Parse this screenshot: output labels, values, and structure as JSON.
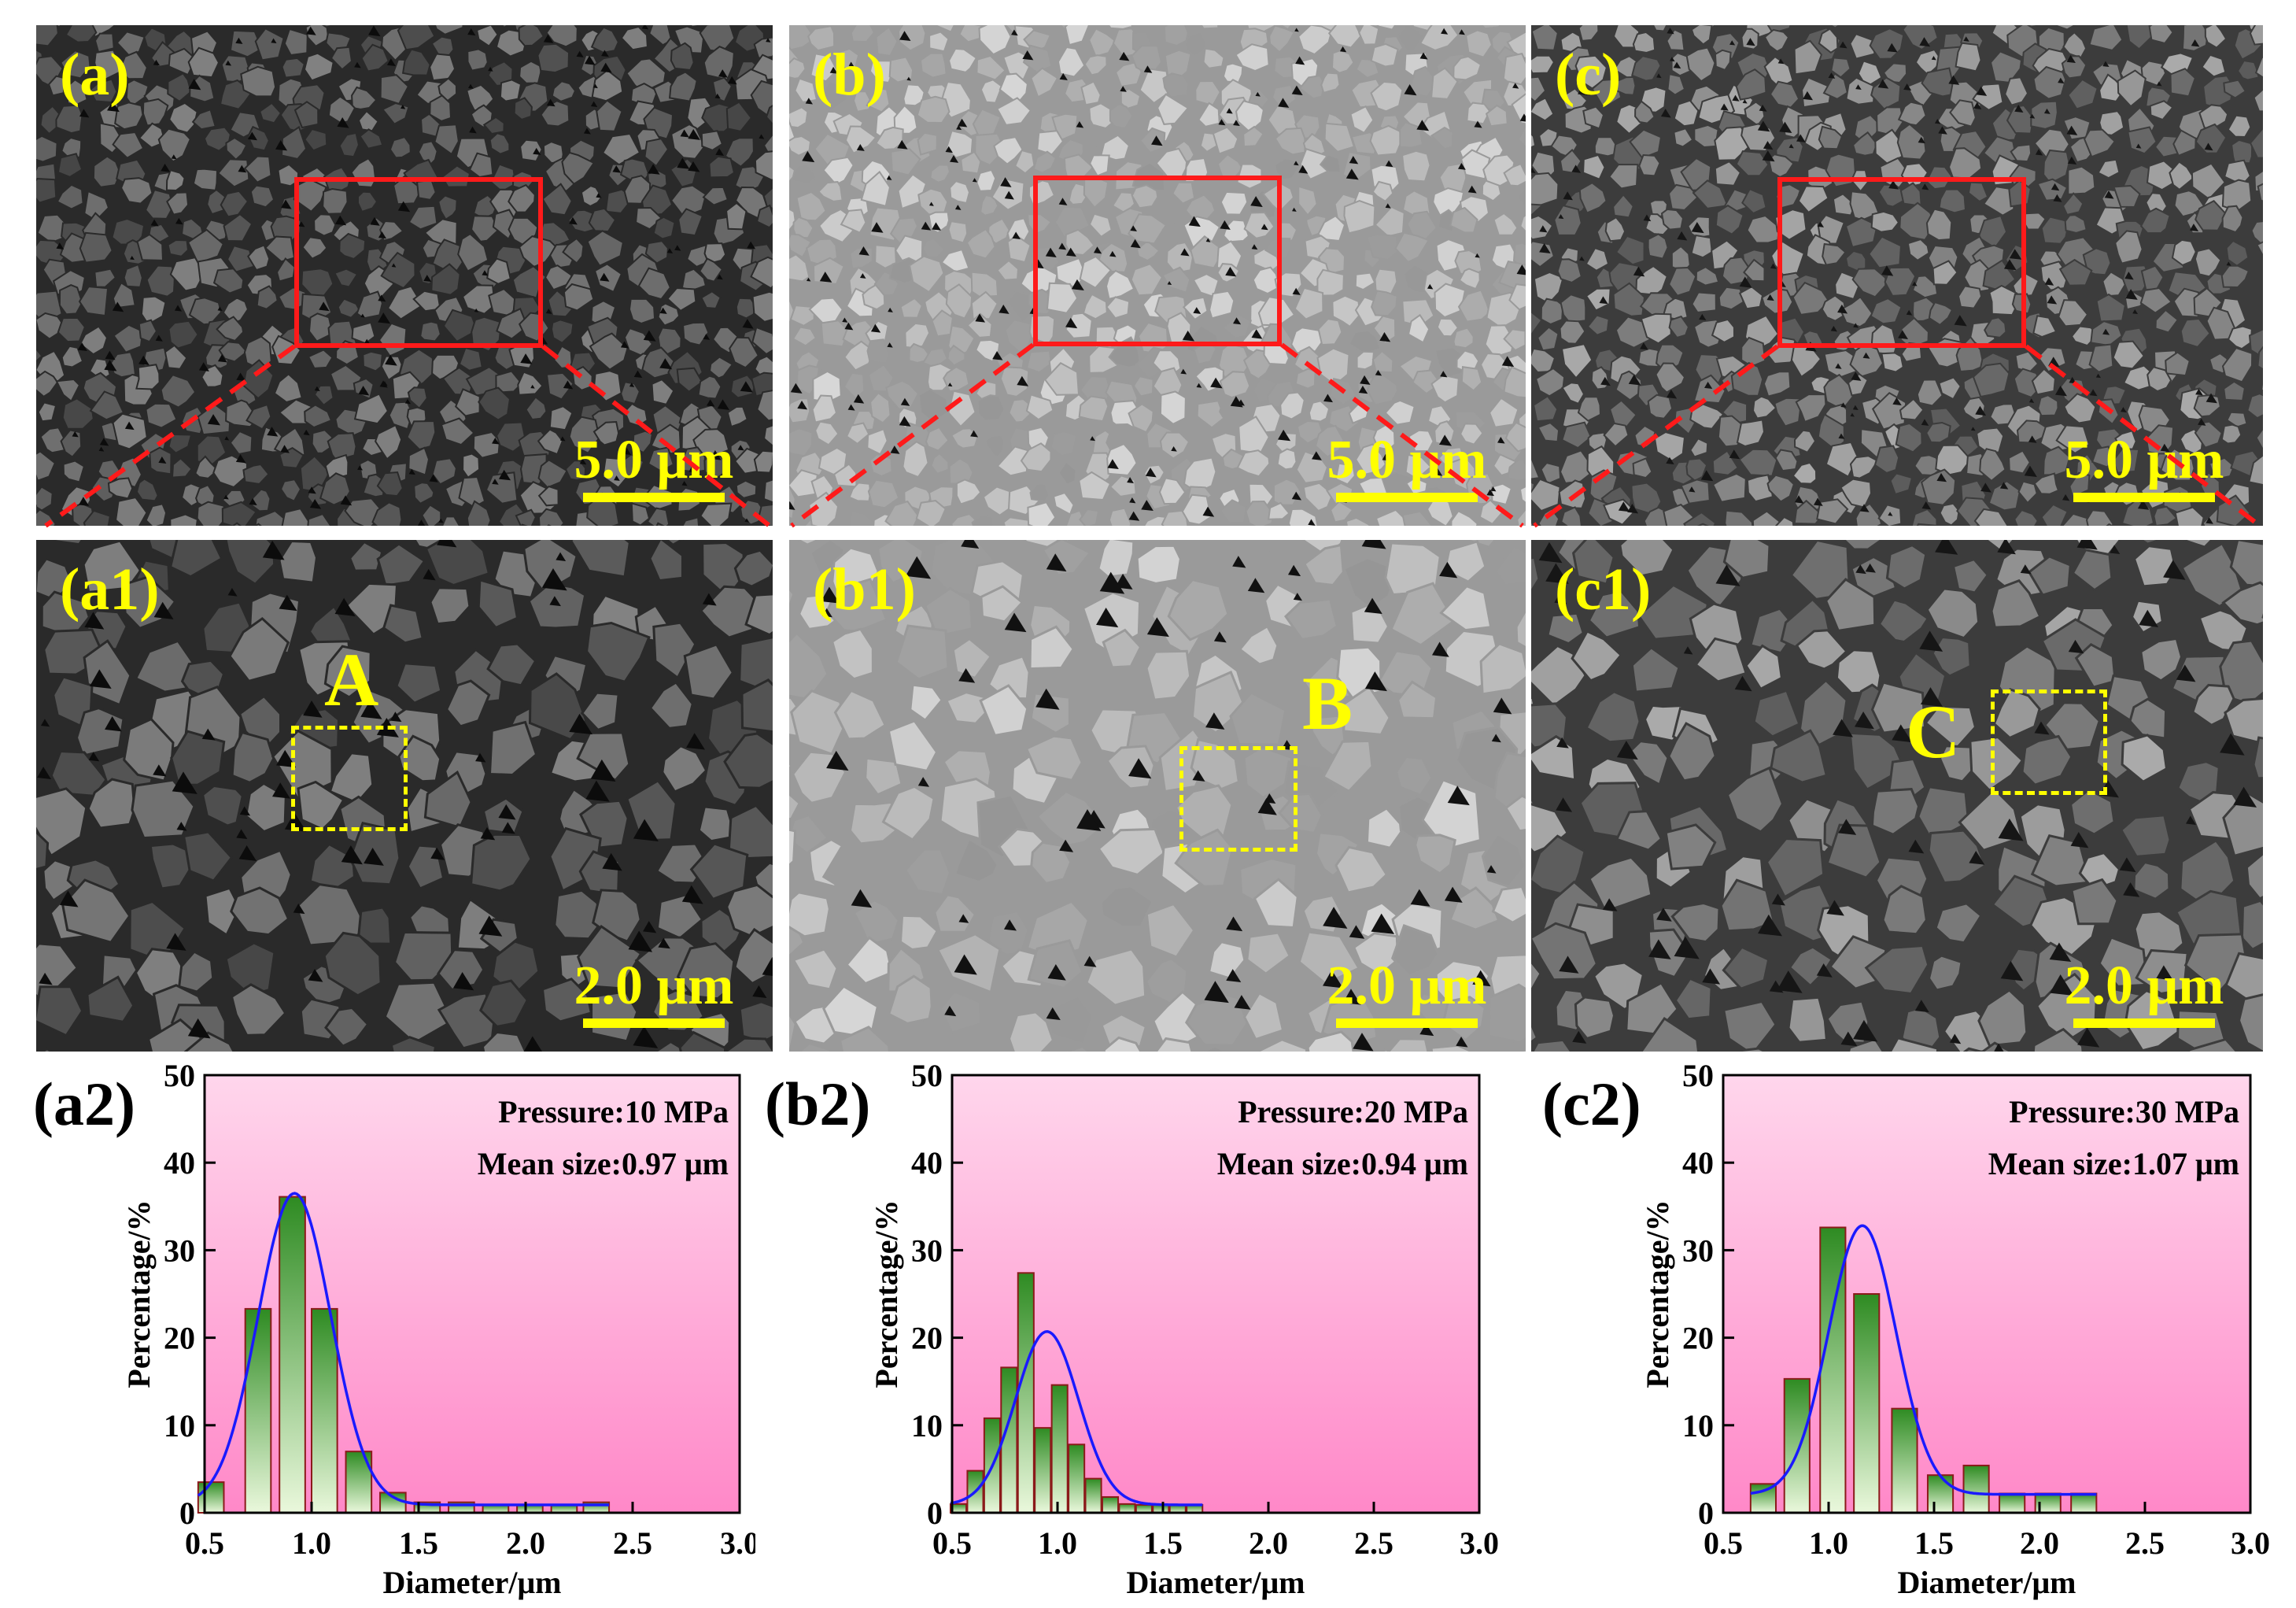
{
  "figure": {
    "micrographs": [
      {
        "label": "(a)",
        "scale_text": "5.0 μm",
        "tone": "dark"
      },
      {
        "label": "(b)",
        "scale_text": "5.0 μm",
        "tone": "light"
      },
      {
        "label": "(c)",
        "scale_text": "5.0 μm",
        "tone": "medium"
      },
      {
        "label": "(a1)",
        "scale_text": "2.0 μm",
        "tone": "dark",
        "roi_label": "A"
      },
      {
        "label": "(b1)",
        "scale_text": "2.0 μm",
        "tone": "light",
        "roi_label": "B"
      },
      {
        "label": "(c1)",
        "scale_text": "2.0 μm",
        "tone": "medium",
        "roi_label": "C"
      }
    ],
    "colors": {
      "label_yellow": "#ffff00",
      "zoom_red": "#ff1a1a",
      "bar_green_dark": "#2e8b22",
      "bar_green_light": "#eaf8dc",
      "fit_blue": "#1a1aff",
      "plot_bg_top": "#ffd6ec",
      "plot_bg_bottom": "#ff88c8"
    }
  },
  "chart_data": [
    {
      "panel_label": "(a2)",
      "type": "bar",
      "title": "",
      "xlabel": "Diameter/μm",
      "ylabel": "Percentage/%",
      "xlim": [
        0.5,
        3.0
      ],
      "ylim": [
        0,
        50
      ],
      "xticks": [
        "0.5",
        "1.0",
        "1.5",
        "2.0",
        "2.5",
        "3.0"
      ],
      "yticks": [
        "0",
        "10",
        "20",
        "30",
        "40",
        "50"
      ],
      "annotations": [
        "Pressure:10 MPa",
        "Mean size:0.97 μm"
      ],
      "bin_width": 0.12,
      "bins": [
        0.53,
        0.75,
        0.91,
        1.06,
        1.22,
        1.38,
        1.54,
        1.7,
        1.86,
        2.02,
        2.18,
        2.33
      ],
      "values": [
        3.5,
        23.3,
        36.1,
        23.3,
        7.0,
        2.3,
        1.2,
        1.2,
        0.9,
        0.9,
        0.9,
        1.2
      ],
      "fit": {
        "type": "gaussian",
        "center": 0.92,
        "sigma": 0.17,
        "peak": 36.5,
        "baseline": 0.9
      }
    },
    {
      "panel_label": "(b2)",
      "type": "bar",
      "title": "",
      "xlabel": "Diameter/μm",
      "ylabel": "Percentage/%",
      "xlim": [
        0.5,
        3.0
      ],
      "ylim": [
        0,
        50
      ],
      "xticks": [
        "0.5",
        "1.0",
        "1.5",
        "2.0",
        "2.5",
        "3.0"
      ],
      "yticks": [
        "0",
        "10",
        "20",
        "30",
        "40",
        "50"
      ],
      "annotations": [
        "Pressure:20 MPa",
        "Mean size:0.94 μm"
      ],
      "bin_width": 0.075,
      "bins": [
        0.53,
        0.61,
        0.69,
        0.77,
        0.85,
        0.93,
        1.01,
        1.09,
        1.17,
        1.25,
        1.33,
        1.41,
        1.49,
        1.57,
        1.65
      ],
      "values": [
        1.0,
        4.8,
        10.8,
        16.6,
        27.4,
        9.7,
        14.6,
        7.8,
        3.9,
        1.8,
        1.0,
        0.9,
        0.9,
        0.9,
        0.9
      ],
      "fit": {
        "type": "gaussian",
        "center": 0.95,
        "sigma": 0.15,
        "peak": 20.7,
        "baseline": 0.9
      }
    },
    {
      "panel_label": "(c2)",
      "type": "bar",
      "title": "",
      "xlabel": "Diameter/μm",
      "ylabel": "Percentage/%",
      "xlim": [
        0.5,
        3.0
      ],
      "ylim": [
        0,
        50
      ],
      "xticks": [
        "0.5",
        "1.0",
        "1.5",
        "2.0",
        "2.5",
        "3.0"
      ],
      "yticks": [
        "0",
        "10",
        "20",
        "30",
        "40",
        "50"
      ],
      "annotations": [
        "Pressure:30 MPa",
        "Mean size:1.07 μm"
      ],
      "bin_width": 0.12,
      "bins": [
        0.69,
        0.85,
        1.02,
        1.18,
        1.36,
        1.53,
        1.7,
        1.87,
        2.04,
        2.21
      ],
      "values": [
        3.3,
        15.3,
        32.6,
        25.0,
        11.9,
        4.3,
        5.4,
        2.2,
        2.2,
        2.2
      ],
      "fit": {
        "type": "gaussian",
        "center": 1.16,
        "sigma": 0.16,
        "peak": 32.8,
        "baseline": 2.1
      }
    }
  ]
}
